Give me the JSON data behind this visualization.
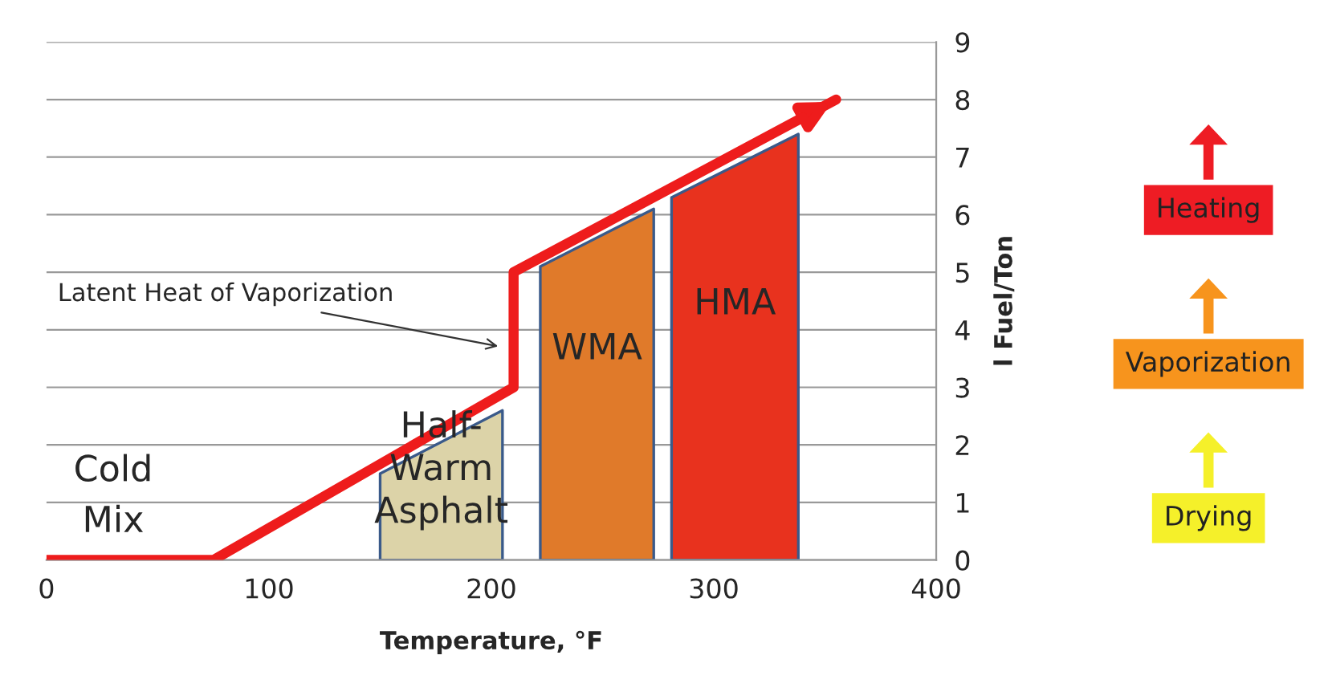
{
  "chart_data": {
    "type": "line",
    "xlabel": "Temperature, °F",
    "ylabel": "l Fuel/Ton",
    "xlim": [
      0,
      400
    ],
    "xticks": [
      0,
      100,
      200,
      300,
      400
    ],
    "ylim": [
      0,
      9
    ],
    "yticks": [
      0,
      1,
      2,
      3,
      4,
      5,
      6,
      7,
      8,
      9
    ],
    "grid": "y",
    "legend": false,
    "marker": "none",
    "line_style": "solid",
    "series": [
      {
        "color": "#ee1c1c",
        "x": [
          0,
          75,
          210,
          210,
          355
        ],
        "values": [
          0,
          0,
          3,
          5,
          8
        ]
      },
      {
        "type": "area",
        "name": "Half-Warm Asphalt",
        "color": "#dcd3a8",
        "x": [
          150,
          205
        ],
        "values": [
          1.5,
          2.6
        ]
      },
      {
        "type": "area",
        "name": "WMA",
        "color": "#e07a2a",
        "x": [
          222,
          273
        ],
        "values": [
          5.1,
          6.1
        ]
      },
      {
        "type": "area",
        "name": "HMA",
        "color": "#e8321e",
        "x": [
          281,
          338
        ],
        "values": [
          6.3,
          7.4
        ]
      }
    ],
    "annotations": [
      {
        "text": "Cold Mix",
        "x": 30,
        "y": 0
      },
      {
        "text": "Latent Heat of Vaporization",
        "x": 205,
        "y": 3.7
      },
      "Heating",
      "Vaporization",
      "Drying"
    ]
  }
}
